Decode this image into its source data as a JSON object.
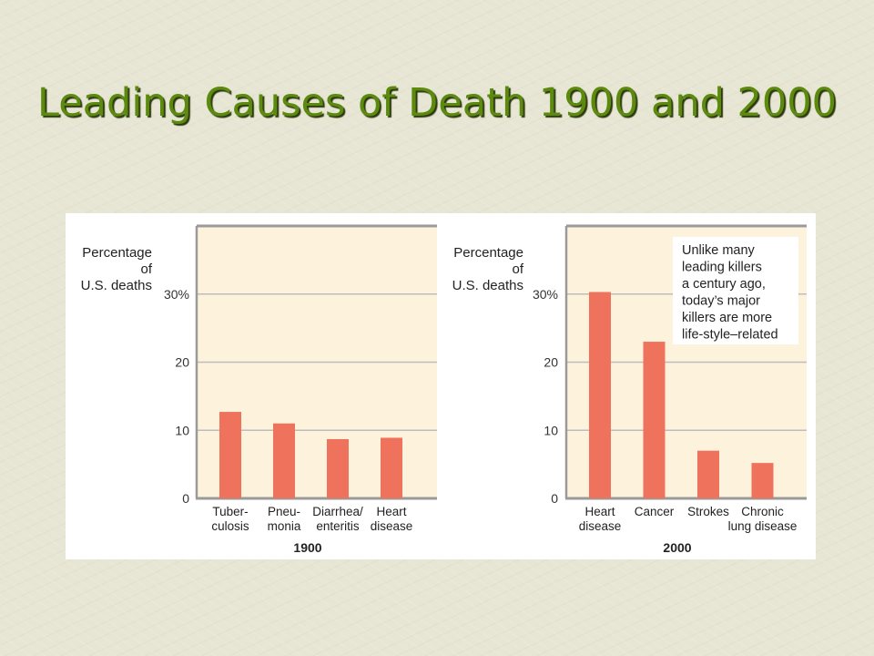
{
  "slide": {
    "title": "Leading Causes of Death 1900 and 2000"
  },
  "colors": {
    "title": "#5c8a0e",
    "bar": "#ef735c",
    "plot_background": "#fdf2dc",
    "gridline": "#bdbdbd"
  },
  "chart_data": [
    {
      "type": "bar",
      "title": "1900",
      "ylabel": [
        "Percentage",
        "of",
        "U.S. deaths"
      ],
      "ylim": [
        0,
        40
      ],
      "yticks": [
        "0",
        "10",
        "20",
        "30%"
      ],
      "categories": [
        [
          "Tuber-",
          "culosis"
        ],
        [
          "Pneu-",
          "monia"
        ],
        [
          "Diarrhea/",
          "enteritis"
        ],
        [
          "Heart",
          "disease"
        ]
      ],
      "values": [
        12.7,
        11.0,
        8.7,
        8.9
      ],
      "grid": true,
      "annotation": null
    },
    {
      "type": "bar",
      "title": "2000",
      "ylabel": [
        "Percentage",
        "of",
        "U.S. deaths"
      ],
      "ylim": [
        0,
        40
      ],
      "yticks": [
        "0",
        "10",
        "20",
        "30%"
      ],
      "categories": [
        [
          "Heart",
          "disease"
        ],
        [
          "Cancer"
        ],
        [
          "Strokes"
        ],
        [
          "Chronic",
          "lung disease"
        ]
      ],
      "values": [
        30.3,
        23.0,
        7.0,
        5.2
      ],
      "grid": true,
      "annotation": [
        "Unlike many",
        "leading killers",
        "a century ago,",
        "today’s major",
        "killers are more",
        "life-style–related"
      ]
    }
  ]
}
